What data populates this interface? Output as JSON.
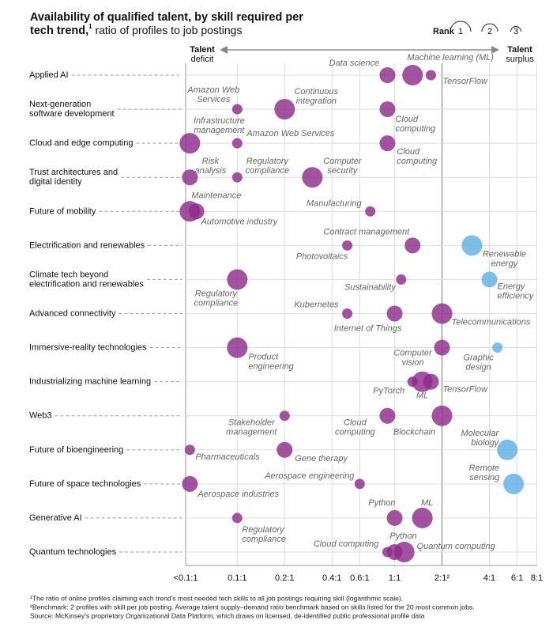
{
  "chart_data": {
    "type": "bubble",
    "title": [
      "Availability of qualified talent, by skill required per",
      "tech trend,"
    ],
    "title_note": "1",
    "subtitle": " ratio of profiles to job postings",
    "legend": {
      "title": "Rank",
      "ranks": [
        1,
        2,
        3
      ]
    },
    "deficit_label": [
      "Talent",
      "deficit"
    ],
    "surplus_label": [
      "Talent",
      "surplus"
    ],
    "log_x": true,
    "grid": true,
    "xlim": [
      0.047,
      8.05
    ],
    "xticks": [
      {
        "value": 0.047,
        "label": "<0.1:1"
      },
      {
        "value": 0.1,
        "label": "0.1:1"
      },
      {
        "value": 0.2,
        "label": "0.2:1"
      },
      {
        "value": 0.4,
        "label": "0.4:1"
      },
      {
        "value": 0.6,
        "label": "0.6:1"
      },
      {
        "value": 1,
        "label": "1:1"
      },
      {
        "value": 2,
        "label": "2:1²"
      },
      {
        "value": 4,
        "label": "4:1"
      },
      {
        "value": 6,
        "label": "6:1"
      },
      {
        "value": 8,
        "label": "8:1"
      }
    ],
    "benchmark": 2,
    "rows": [
      {
        "name": [
          "Applied AI"
        ],
        "skills": [
          {
            "name": [
              "Data science"
            ],
            "ratio": 0.9,
            "rank": 2,
            "color": "#8e2c8a"
          },
          {
            "name": [
              "Machine learning (ML)"
            ],
            "ratio": 1.3,
            "rank": 1,
            "color": "#8e2c8a"
          },
          {
            "name": [
              "TensorFlow"
            ],
            "ratio": 1.7,
            "rank": 3,
            "color": "#8e2c8a"
          }
        ]
      },
      {
        "name": [
          "Next-generation",
          "software development"
        ],
        "skills": [
          {
            "name": [
              "Amazon Web",
              "Services"
            ],
            "ratio": 0.1,
            "rank": 3,
            "color": "#8e2c8a"
          },
          {
            "name": [
              "Continuous",
              "integration"
            ],
            "ratio": 0.2,
            "rank": 1,
            "color": "#8e2c8a"
          },
          {
            "name": [
              "Cloud",
              "computing"
            ],
            "ratio": 0.9,
            "rank": 2,
            "color": "#8e2c8a"
          }
        ]
      },
      {
        "name": [
          "Cloud and edge computing"
        ],
        "skills": [
          {
            "name": [
              "Infrastructure",
              "management"
            ],
            "ratio": 0.05,
            "rank": 1,
            "color": "#8e2c8a"
          },
          {
            "name": [
              "Amazon Web Services"
            ],
            "ratio": 0.1,
            "rank": 3,
            "color": "#8e2c8a"
          },
          {
            "name": [
              "Cloud",
              "computing"
            ],
            "ratio": 0.9,
            "rank": 2,
            "color": "#8e2c8a"
          }
        ]
      },
      {
        "name": [
          "Trust architectures and",
          "digital identity"
        ],
        "skills": [
          {
            "name": [
              "Risk",
              "analysis"
            ],
            "ratio": 0.05,
            "rank": 2,
            "color": "#8e2c8a"
          },
          {
            "name": [
              "Regulatory",
              "compliance"
            ],
            "ratio": 0.1,
            "rank": 3,
            "color": "#8e2c8a"
          },
          {
            "name": [
              "Computer",
              "security"
            ],
            "ratio": 0.3,
            "rank": 1,
            "color": "#8e2c8a"
          }
        ]
      },
      {
        "name": [
          "Future of mobility"
        ],
        "skills": [
          {
            "name": [
              "Maintenance"
            ],
            "ratio": 0.05,
            "rank": 1,
            "color": "#8e2c8a"
          },
          {
            "name": [
              "Automotive industry"
            ],
            "ratio": 0.055,
            "rank": 2,
            "color": "#8e2c8a"
          },
          {
            "name": [
              "Manufacturing"
            ],
            "ratio": 0.7,
            "rank": 3,
            "color": "#8e2c8a"
          }
        ]
      },
      {
        "name": [
          "Electrification and renewables"
        ],
        "skills": [
          {
            "name": [
              "Contract management"
            ],
            "ratio": 1.3,
            "rank": 2,
            "color": "#8e2c8a"
          },
          {
            "name": [
              "Photovoltaics"
            ],
            "ratio": 0.5,
            "rank": 3,
            "color": "#8e2c8a"
          },
          {
            "name": [
              "Renewable",
              "energy"
            ],
            "ratio": 3.1,
            "rank": 1,
            "color": "#5db0e4"
          }
        ]
      },
      {
        "name": [
          "Climate tech beyond",
          "electrification and renewables"
        ],
        "skills": [
          {
            "name": [
              "Regulatory",
              "compliance"
            ],
            "ratio": 0.1,
            "rank": 1,
            "color": "#8e2c8a"
          },
          {
            "name": [
              "Sustainability"
            ],
            "ratio": 1.1,
            "rank": 3,
            "color": "#8e2c8a"
          },
          {
            "name": [
              "Energy",
              "efficiency"
            ],
            "ratio": 4.0,
            "rank": 2,
            "color": "#5db0e4"
          }
        ]
      },
      {
        "name": [
          "Advanced connectivity"
        ],
        "skills": [
          {
            "name": [
              "Kubernetes"
            ],
            "ratio": 0.5,
            "rank": 3,
            "color": "#8e2c8a"
          },
          {
            "name": [
              "Internet of Things"
            ],
            "ratio": 1.0,
            "rank": 2,
            "color": "#8e2c8a"
          },
          {
            "name": [
              "Telecommunications"
            ],
            "ratio": 2.0,
            "rank": 1,
            "color": "#8e2c8a"
          }
        ]
      },
      {
        "name": [
          "Immersive-reality technologies"
        ],
        "skills": [
          {
            "name": [
              "Product",
              "engineering"
            ],
            "ratio": 0.1,
            "rank": 1,
            "color": "#8e2c8a"
          },
          {
            "name": [
              "Computer",
              "vision"
            ],
            "ratio": 2.0,
            "rank": 2,
            "color": "#8e2c8a"
          },
          {
            "name": [
              "Graphic",
              "design"
            ],
            "ratio": 4.5,
            "rank": 3,
            "color": "#5db0e4"
          }
        ]
      },
      {
        "name": [
          "Industrializing machine learning"
        ],
        "skills": [
          {
            "name": [
              "PyTorch"
            ],
            "ratio": 1.3,
            "rank": 3,
            "color": "#8e2c8a"
          },
          {
            "name": [
              "ML"
            ],
            "ratio": 1.5,
            "rank": 1,
            "color": "#8e2c8a"
          },
          {
            "name": [
              "TensorFlow"
            ],
            "ratio": 1.7,
            "rank": 2,
            "color": "#8e2c8a"
          }
        ]
      },
      {
        "name": [
          "Web3"
        ],
        "skills": [
          {
            "name": [
              "Stakeholder",
              "management"
            ],
            "ratio": 0.2,
            "rank": 3,
            "color": "#8e2c8a"
          },
          {
            "name": [
              "Cloud",
              "computing"
            ],
            "ratio": 0.9,
            "rank": 2,
            "color": "#8e2c8a"
          },
          {
            "name": [
              "Blockchain"
            ],
            "ratio": 2.0,
            "rank": 1,
            "color": "#8e2c8a"
          }
        ]
      },
      {
        "name": [
          "Future of bioengineering"
        ],
        "skills": [
          {
            "name": [
              "Pharmaceuticals"
            ],
            "ratio": 0.05,
            "rank": 3,
            "color": "#8e2c8a"
          },
          {
            "name": [
              "Gene therapy"
            ],
            "ratio": 0.2,
            "rank": 2,
            "color": "#8e2c8a"
          },
          {
            "name": [
              "Molecular",
              "biology"
            ],
            "ratio": 5.2,
            "rank": 1,
            "color": "#5db0e4"
          }
        ]
      },
      {
        "name": [
          "Future of space technologies"
        ],
        "skills": [
          {
            "name": [
              "Aerospace industries"
            ],
            "ratio": 0.05,
            "rank": 2,
            "color": "#8e2c8a"
          },
          {
            "name": [
              "Aerospace engineering"
            ],
            "ratio": 0.6,
            "rank": 3,
            "color": "#8e2c8a"
          },
          {
            "name": [
              "Remote",
              "sensing"
            ],
            "ratio": 5.7,
            "rank": 1,
            "color": "#5db0e4"
          }
        ]
      },
      {
        "name": [
          "Generative AI"
        ],
        "skills": [
          {
            "name": [
              "Regulatory",
              "compliance"
            ],
            "ratio": 0.1,
            "rank": 3,
            "color": "#8e2c8a"
          },
          {
            "name": [
              "Python"
            ],
            "ratio": 1.0,
            "rank": 2,
            "color": "#8e2c8a"
          },
          {
            "name": [
              "ML"
            ],
            "ratio": 1.5,
            "rank": 1,
            "color": "#8e2c8a"
          }
        ]
      },
      {
        "name": [
          "Quantum technologies"
        ],
        "skills": [
          {
            "name": [
              "Cloud computing"
            ],
            "ratio": 0.9,
            "rank": 3,
            "color": "#8e2c8a"
          },
          {
            "name": [
              "Python"
            ],
            "ratio": 1.0,
            "rank": 2,
            "color": "#8e2c8a"
          },
          {
            "name": [
              "Quantum computing"
            ],
            "ratio": 1.15,
            "rank": 1,
            "color": "#8e2c8a"
          }
        ]
      }
    ],
    "footnotes": [
      "¹The ratio of online profiles claiming each trend's most needed tech skills to all job postings requiring skill (logarithmic scale).",
      "²Benchmark: 2 profiles with skill per job posting. Average talent supply–demand ratio benchmark based on skills listed for the 20 most common jobs.",
      "Source: McKinsey's proprietary Organizational Data Platform, which draws on licensed, de-identified public professional profile data"
    ]
  }
}
